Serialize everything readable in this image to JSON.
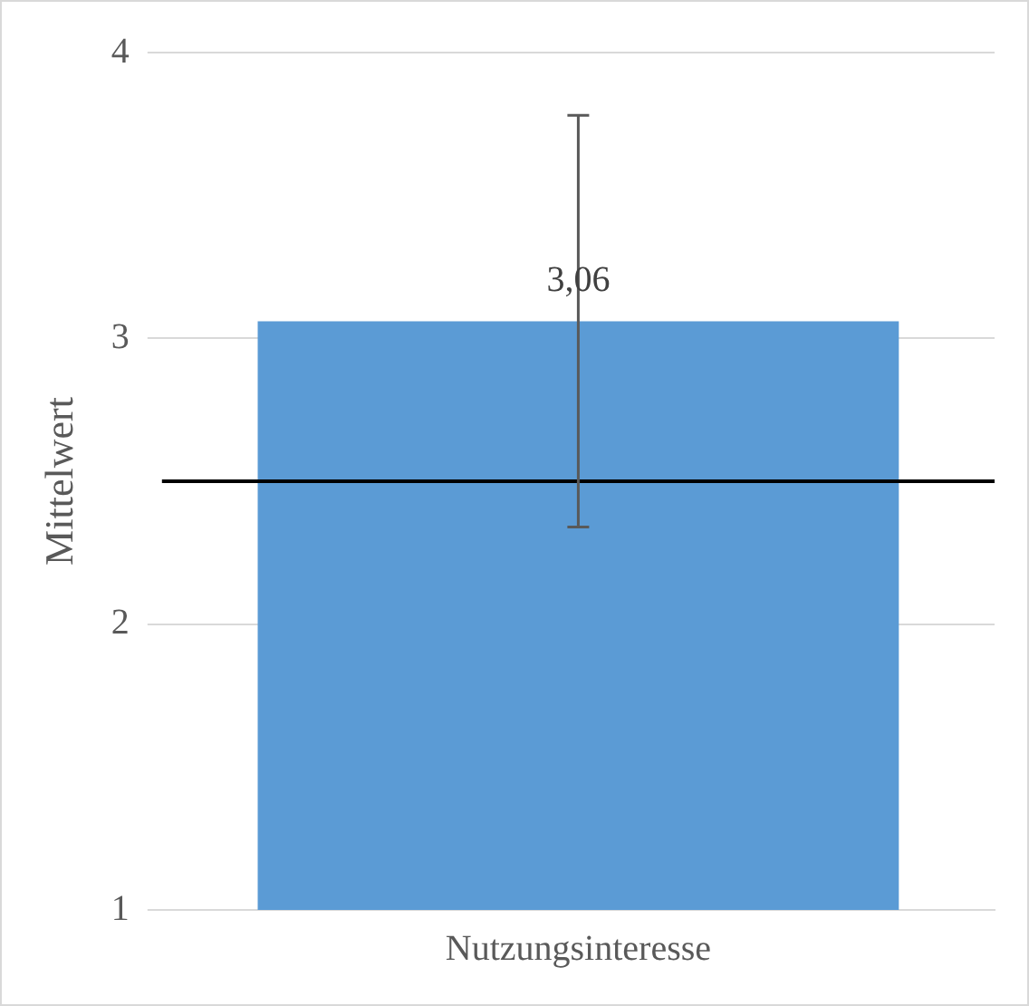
{
  "chart_data": {
    "type": "bar",
    "ylabel": "Mittelwert",
    "categories": [
      "Nutzungsinteresse"
    ],
    "values": [
      3.06
    ],
    "color": "#5b9bd5",
    "errors": [
      0.72
    ],
    "value_labels": [
      "3,06"
    ],
    "ylim": [
      1,
      4
    ],
    "yticks": [
      1,
      2,
      3,
      4
    ],
    "grid": "y",
    "legend": false,
    "ref_lines": [
      {
        "axis": "y",
        "value": 2.5,
        "color": "#000000"
      }
    ]
  }
}
